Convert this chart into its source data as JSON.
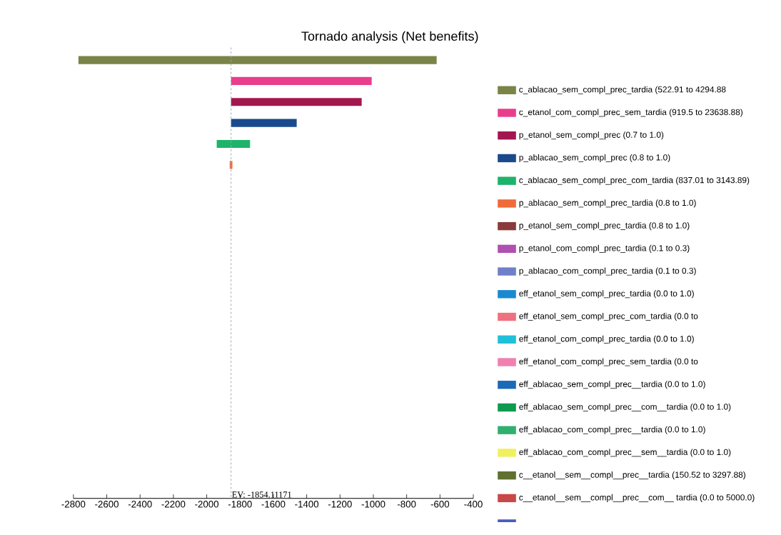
{
  "chart_data": {
    "type": "bar",
    "orientation": "horizontal",
    "title": "Tornado analysis (Net benefits)",
    "categories": [
      null,
      null,
      null,
      null,
      null,
      null,
      null,
      null,
      null,
      null,
      null,
      null,
      null,
      null,
      null,
      null,
      null,
      null,
      null,
      null
    ],
    "xlim": [
      -2800,
      -400
    ],
    "xticks": [
      -2800,
      -2600,
      -2400,
      -2200,
      -2000,
      -1800,
      -1600,
      -1400,
      -1200,
      -1000,
      -800,
      -600,
      -400
    ],
    "grid": false,
    "legend": "right",
    "ref_lines": [
      {
        "axis": "x",
        "value": -1854.11171,
        "label": "EV: -1854.11171",
        "color": "#9aaabb",
        "line_style": "dashed"
      }
    ],
    "series": [
      {
        "name": "c_ablacao_sem_compl_prec_tardia (522.91 to 4294.88",
        "color": "#7a8446",
        "values": [
          2150,
          null,
          null,
          null,
          null,
          null,
          null,
          null,
          null,
          null,
          null,
          null,
          null,
          null,
          null,
          null,
          null,
          null,
          null,
          null
        ],
        "base": [
          -2770,
          null,
          null,
          null,
          null,
          null,
          null,
          null,
          null,
          null,
          null,
          null,
          null,
          null,
          null,
          null,
          null,
          null,
          null,
          null
        ]
      },
      {
        "name": "c_etanol_com_compl_prec_sem_tardia (919.5 to 23638.88)",
        "color": "#e83e8c",
        "values": [
          null,
          844,
          null,
          null,
          null,
          null,
          null,
          null,
          null,
          null,
          null,
          null,
          null,
          null,
          null,
          null,
          null,
          null,
          null,
          null
        ],
        "base": [
          null,
          -1854,
          null,
          null,
          null,
          null,
          null,
          null,
          null,
          null,
          null,
          null,
          null,
          null,
          null,
          null,
          null,
          null,
          null,
          null
        ]
      },
      {
        "name": "p_etanol_sem_compl_prec (0.7 to 1.0)",
        "color": "#a3174f",
        "values": [
          null,
          null,
          784,
          null,
          null,
          null,
          null,
          null,
          null,
          null,
          null,
          null,
          null,
          null,
          null,
          null,
          null,
          null,
          null,
          null
        ],
        "base": [
          null,
          null,
          -1854,
          null,
          null,
          null,
          null,
          null,
          null,
          null,
          null,
          null,
          null,
          null,
          null,
          null,
          null,
          null,
          null,
          null
        ]
      },
      {
        "name": "p_ablacao_sem_compl_prec (0.8 to 1.0)",
        "color": "#1a4a8c",
        "values": [
          null,
          null,
          null,
          394,
          null,
          null,
          null,
          null,
          null,
          null,
          null,
          null,
          null,
          null,
          null,
          null,
          null,
          null,
          null,
          null
        ],
        "base": [
          null,
          null,
          null,
          -1854,
          null,
          null,
          null,
          null,
          null,
          null,
          null,
          null,
          null,
          null,
          null,
          null,
          null,
          null,
          null,
          null
        ]
      },
      {
        "name": "c_ablacao_sem_compl_prec_com_tardia (837.01 to 3143.89)",
        "color": "#1db36a",
        "values": [
          null,
          null,
          null,
          null,
          200,
          null,
          null,
          null,
          null,
          null,
          null,
          null,
          null,
          null,
          null,
          null,
          null,
          null,
          null,
          null
        ],
        "base": [
          null,
          null,
          null,
          null,
          -1940,
          null,
          null,
          null,
          null,
          null,
          null,
          null,
          null,
          null,
          null,
          null,
          null,
          null,
          null,
          null
        ]
      },
      {
        "name": "p_ablacao_sem_compl_prec_tardia (0.8 to 1.0)",
        "color": "#f06a3a",
        "values": [
          null,
          null,
          null,
          null,
          null,
          16,
          null,
          null,
          null,
          null,
          null,
          null,
          null,
          null,
          null,
          null,
          null,
          null,
          null,
          null
        ],
        "base": [
          null,
          null,
          null,
          null,
          null,
          -1862,
          null,
          null,
          null,
          null,
          null,
          null,
          null,
          null,
          null,
          null,
          null,
          null,
          null,
          null
        ]
      },
      {
        "name": "p_etanol_sem_compl_prec_tardia (0.8 to 1.0)",
        "color": "#8a3a3a",
        "values": [
          null,
          null,
          null,
          null,
          null,
          null,
          null,
          null,
          null,
          null,
          null,
          null,
          null,
          null,
          null,
          null,
          null,
          null,
          null,
          null
        ]
      },
      {
        "name": "p_etanol_com_compl_prec_tardia (0.1 to 0.3)",
        "color": "#b050b0",
        "values": [
          null,
          null,
          null,
          null,
          null,
          null,
          null,
          null,
          null,
          null,
          null,
          null,
          null,
          null,
          null,
          null,
          null,
          null,
          null,
          null
        ]
      },
      {
        "name": "p_ablacao_com_compl_prec_tardia (0.1 to 0.3)",
        "color": "#7080c8",
        "values": [
          null,
          null,
          null,
          null,
          null,
          null,
          null,
          null,
          null,
          null,
          null,
          null,
          null,
          null,
          null,
          null,
          null,
          null,
          null,
          null
        ]
      },
      {
        "name": "eff_etanol_sem_compl_prec_tardia (0.0 to 1.0)",
        "color": "#1a8ad0",
        "values": [
          null,
          null,
          null,
          null,
          null,
          null,
          null,
          null,
          null,
          null,
          null,
          null,
          null,
          null,
          null,
          null,
          null,
          null,
          null,
          null
        ]
      },
      {
        "name": "eff_etanol_sem_compl_prec_com_tardia (0.0 to",
        "color": "#f07080",
        "values": [
          null,
          null,
          null,
          null,
          null,
          null,
          null,
          null,
          null,
          null,
          null,
          null,
          null,
          null,
          null,
          null,
          null,
          null,
          null,
          null
        ]
      },
      {
        "name": "eff_etanol_com_compl_prec_tardia (0.0 to 1.0)",
        "color": "#20c0d8",
        "values": [
          null,
          null,
          null,
          null,
          null,
          null,
          null,
          null,
          null,
          null,
          null,
          null,
          null,
          null,
          null,
          null,
          null,
          null,
          null,
          null
        ]
      },
      {
        "name": "eff_etanol_com_compl_prec_sem_tardia (0.0 to",
        "color": "#f080b0",
        "values": [
          null,
          null,
          null,
          null,
          null,
          null,
          null,
          null,
          null,
          null,
          null,
          null,
          null,
          null,
          null,
          null,
          null,
          null,
          null,
          null
        ]
      },
      {
        "name": "eff_ablacao_sem_compl_prec__tardia (0.0 to 1.0)",
        "color": "#1a6ab8",
        "values": [
          null,
          null,
          null,
          null,
          null,
          null,
          null,
          null,
          null,
          null,
          null,
          null,
          null,
          null,
          null,
          null,
          null,
          null,
          null,
          null
        ]
      },
      {
        "name": "eff_ablacao_sem_compl_prec__com__tardia (0.0 to 1.0)",
        "color": "#109a50",
        "values": [
          null,
          null,
          null,
          null,
          null,
          null,
          null,
          null,
          null,
          null,
          null,
          null,
          null,
          null,
          null,
          null,
          null,
          null,
          null,
          null
        ]
      },
      {
        "name": "eff_ablacao_com_compl_prec__tardia (0.0 to 1.0)",
        "color": "#30b070",
        "values": [
          null,
          null,
          null,
          null,
          null,
          null,
          null,
          null,
          null,
          null,
          null,
          null,
          null,
          null,
          null,
          null,
          null,
          null,
          null,
          null
        ]
      },
      {
        "name": "eff_ablacao_com_compl_prec__sem__tardia (0.0 to 1.0)",
        "color": "#f0f060",
        "values": [
          null,
          null,
          null,
          null,
          null,
          null,
          null,
          null,
          null,
          null,
          null,
          null,
          null,
          null,
          null,
          null,
          null,
          null,
          null,
          null
        ]
      },
      {
        "name": "c__etanol__sem__compl__prec__tardia (150.52 to 3297.88)",
        "color": "#607030",
        "values": [
          null,
          null,
          null,
          null,
          null,
          null,
          null,
          null,
          null,
          null,
          null,
          null,
          null,
          null,
          null,
          null,
          null,
          null,
          null,
          null
        ]
      },
      {
        "name": "c__etanol__sem__compl__prec__com__ tardia  (0.0 to 5000.0)",
        "color": "#c84848",
        "values": [
          null,
          null,
          null,
          null,
          null,
          null,
          null,
          null,
          null,
          null,
          null,
          null,
          null,
          null,
          null,
          null,
          null,
          null,
          null,
          null
        ]
      },
      {
        "color": "#4a5ac0",
        "values": [
          null,
          null,
          null,
          null,
          null,
          null,
          null,
          null,
          null,
          null,
          null,
          null,
          null,
          null,
          null,
          null,
          null,
          null,
          null,
          null
        ]
      }
    ]
  }
}
